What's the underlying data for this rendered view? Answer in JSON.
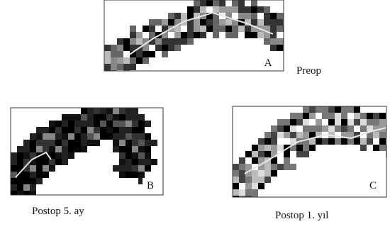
{
  "panels": [
    {
      "label": "A",
      "caption": "Preop"
    },
    {
      "label": "B",
      "caption": "Postop 5. ay"
    },
    {
      "label": "C",
      "caption": "Postop 1. yıl"
    }
  ]
}
